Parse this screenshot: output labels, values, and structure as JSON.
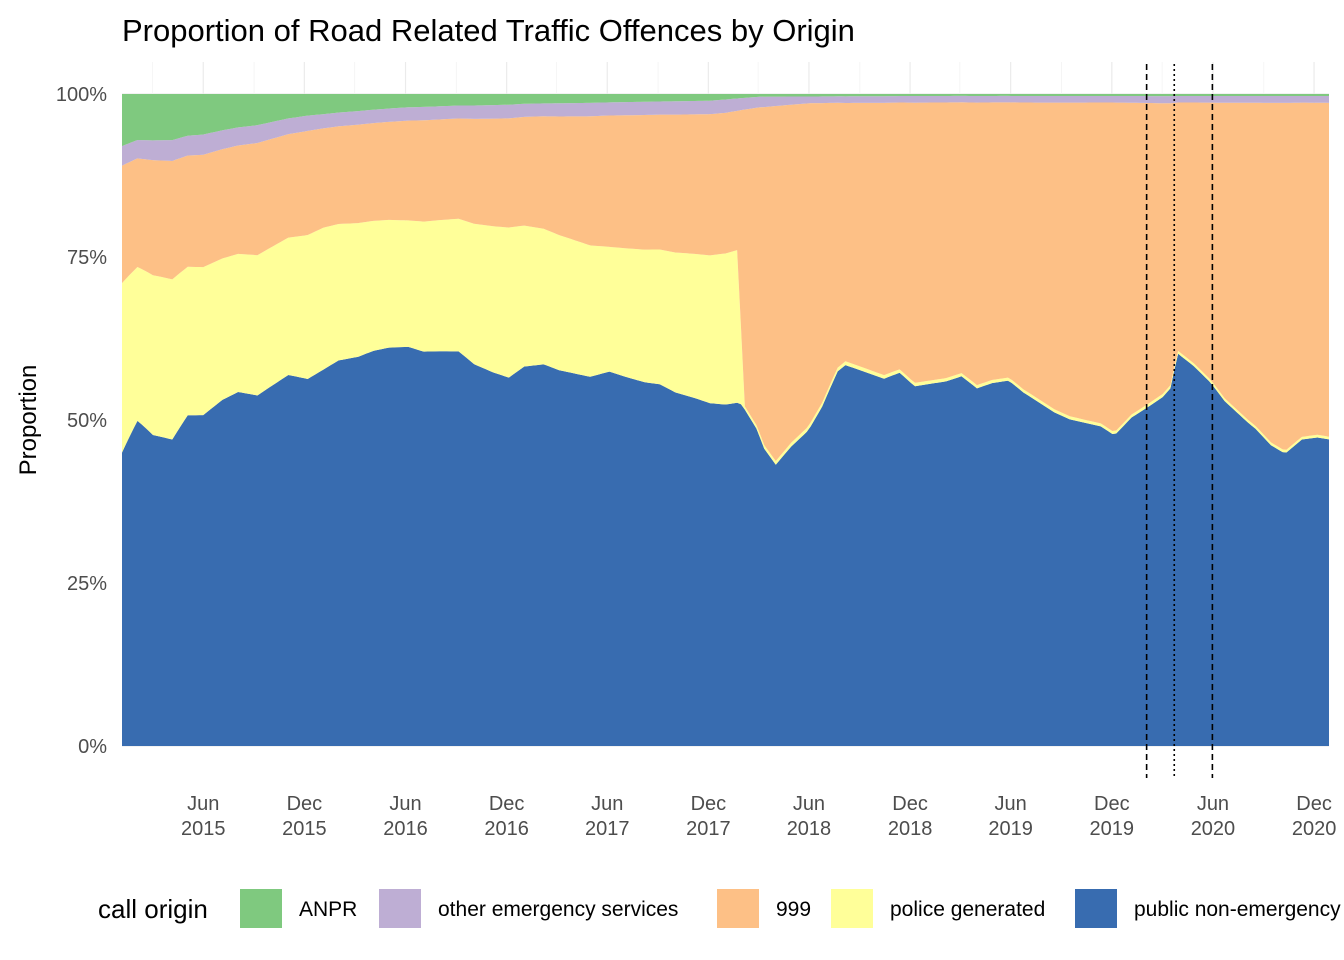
{
  "chart_data": {
    "type": "area",
    "stacked": true,
    "normalized": true,
    "title": "Proportion of Road Related Traffic Offences by Origin",
    "xlabel": "",
    "ylabel": "Proportion",
    "x_start": "2015-01-05",
    "x_end": "2020-12-28",
    "ylim": [
      0,
      1
    ],
    "y_ticks": [
      {
        "value": 0,
        "label": "0%"
      },
      {
        "value": 0.25,
        "label": "25%"
      },
      {
        "value": 0.5,
        "label": "50%"
      },
      {
        "value": 0.75,
        "label": "75%"
      },
      {
        "value": 1,
        "label": "100%"
      }
    ],
    "x_ticks": [
      {
        "date": "2015-06-01",
        "month": "Jun",
        "year": "2015"
      },
      {
        "date": "2015-12-01",
        "month": "Dec",
        "year": "2015"
      },
      {
        "date": "2016-06-01",
        "month": "Jun",
        "year": "2016"
      },
      {
        "date": "2016-12-01",
        "month": "Dec",
        "year": "2016"
      },
      {
        "date": "2017-06-01",
        "month": "Jun",
        "year": "2017"
      },
      {
        "date": "2017-12-01",
        "month": "Dec",
        "year": "2017"
      },
      {
        "date": "2018-06-01",
        "month": "Jun",
        "year": "2018"
      },
      {
        "date": "2018-12-01",
        "month": "Dec",
        "year": "2018"
      },
      {
        "date": "2019-06-01",
        "month": "Jun",
        "year": "2019"
      },
      {
        "date": "2019-12-01",
        "month": "Dec",
        "year": "2019"
      },
      {
        "date": "2020-06-01",
        "month": "Jun",
        "year": "2020"
      },
      {
        "date": "2020-12-01",
        "month": "Dec",
        "year": "2020"
      }
    ],
    "grid": true,
    "legend_position": "bottom",
    "legend_title": "call origin",
    "reference_lines": [
      {
        "date": "2020-02-02",
        "style": "dashed"
      },
      {
        "date": "2020-03-23",
        "style": "dotted"
      },
      {
        "date": "2020-05-31",
        "style": "dashed"
      }
    ],
    "series": [
      {
        "name": "public non-emergency",
        "color": "#386cb0",
        "anchors": [
          [
            "2015-01-05",
            0.45
          ],
          [
            "2015-02-02",
            0.53
          ],
          [
            "2015-03-02",
            0.47
          ],
          [
            "2015-04-06",
            0.44
          ],
          [
            "2015-05-04",
            0.5
          ],
          [
            "2015-06-01",
            0.49
          ],
          [
            "2015-07-06",
            0.52
          ],
          [
            "2015-08-03",
            0.53
          ],
          [
            "2015-09-07",
            0.5
          ],
          [
            "2015-10-05",
            0.52
          ],
          [
            "2015-11-02",
            0.54
          ],
          [
            "2015-12-07",
            0.51
          ],
          [
            "2016-01-04",
            0.53
          ],
          [
            "2016-02-01",
            0.56
          ],
          [
            "2016-03-07",
            0.57
          ],
          [
            "2016-04-04",
            0.59
          ],
          [
            "2016-05-02",
            0.6
          ],
          [
            "2016-06-06",
            0.6
          ],
          [
            "2016-07-04",
            0.59
          ],
          [
            "2016-08-01",
            0.6
          ],
          [
            "2016-09-05",
            0.61
          ],
          [
            "2016-10-03",
            0.57
          ],
          [
            "2016-11-07",
            0.55
          ],
          [
            "2016-12-05",
            0.54
          ],
          [
            "2017-01-02",
            0.58
          ],
          [
            "2017-02-06",
            0.59
          ],
          [
            "2017-03-06",
            0.57
          ],
          [
            "2017-04-03",
            0.56
          ],
          [
            "2017-05-01",
            0.55
          ],
          [
            "2017-06-05",
            0.57
          ],
          [
            "2017-07-03",
            0.56
          ],
          [
            "2017-08-07",
            0.55
          ],
          [
            "2017-09-04",
            0.55
          ],
          [
            "2017-10-02",
            0.53
          ],
          [
            "2017-11-06",
            0.52
          ],
          [
            "2017-12-04",
            0.51
          ],
          [
            "2018-01-01",
            0.51
          ],
          [
            "2018-01-29",
            0.52
          ],
          [
            "2018-02-26",
            0.48
          ],
          [
            "2018-03-12",
            0.44
          ],
          [
            "2018-04-02",
            0.42
          ],
          [
            "2018-04-30",
            0.45
          ],
          [
            "2018-05-28",
            0.47
          ],
          [
            "2018-06-25",
            0.51
          ],
          [
            "2018-07-23",
            0.58
          ],
          [
            "2018-08-20",
            0.57
          ],
          [
            "2018-09-17",
            0.56
          ],
          [
            "2018-10-15",
            0.55
          ],
          [
            "2018-11-12",
            0.58
          ],
          [
            "2018-12-10",
            0.54
          ],
          [
            "2019-01-07",
            0.55
          ],
          [
            "2019-02-04",
            0.56
          ],
          [
            "2019-03-04",
            0.58
          ],
          [
            "2019-04-01",
            0.54
          ],
          [
            "2019-04-29",
            0.56
          ],
          [
            "2019-05-27",
            0.57
          ],
          [
            "2019-06-24",
            0.54
          ],
          [
            "2019-07-22",
            0.52
          ],
          [
            "2019-08-19",
            0.5
          ],
          [
            "2019-09-16",
            0.49
          ],
          [
            "2019-10-14",
            0.49
          ],
          [
            "2019-11-11",
            0.49
          ],
          [
            "2019-12-09",
            0.47
          ],
          [
            "2020-01-06",
            0.49
          ],
          [
            "2020-02-03",
            0.49
          ],
          [
            "2020-03-02",
            0.49
          ],
          [
            "2020-03-16",
            0.5
          ],
          [
            "2020-03-30",
            0.6
          ],
          [
            "2020-04-27",
            0.58
          ],
          [
            "2020-05-25",
            0.55
          ],
          [
            "2020-06-22",
            0.51
          ],
          [
            "2020-07-20",
            0.49
          ],
          [
            "2020-08-17",
            0.47
          ],
          [
            "2020-09-14",
            0.44
          ],
          [
            "2020-10-12",
            0.43
          ],
          [
            "2020-11-09",
            0.46
          ],
          [
            "2020-12-07",
            0.46
          ],
          [
            "2020-12-28",
            0.45
          ]
        ]
      },
      {
        "name": "police generated",
        "color": "#ffff99",
        "anchors": [
          [
            "2015-01-05",
            0.26
          ],
          [
            "2015-04-06",
            0.23
          ],
          [
            "2015-09-07",
            0.2
          ],
          [
            "2016-01-04",
            0.2
          ],
          [
            "2016-06-06",
            0.19
          ],
          [
            "2016-12-05",
            0.22
          ],
          [
            "2017-06-05",
            0.19
          ],
          [
            "2017-12-04",
            0.22
          ],
          [
            "2018-01-22",
            0.23
          ],
          [
            "2018-02-05",
            0.005
          ],
          [
            "2018-06-04",
            0.006
          ],
          [
            "2019-01-07",
            0.005
          ],
          [
            "2020-12-28",
            0.004
          ]
        ]
      },
      {
        "name": "999",
        "color": "#fdc086",
        "anchors": [
          [
            "2015-01-05",
            0.18
          ],
          [
            "2015-04-06",
            0.17
          ],
          [
            "2015-09-07",
            0.16
          ],
          [
            "2016-01-04",
            0.14
          ],
          [
            "2016-06-06",
            0.15
          ],
          [
            "2016-12-05",
            0.16
          ],
          [
            "2017-06-05",
            0.2
          ],
          [
            "2017-12-04",
            0.21
          ],
          [
            "2018-01-22",
            0.21
          ],
          [
            "2018-02-05",
            0.45
          ],
          [
            "2018-04-02",
            0.53
          ],
          [
            "2018-06-04",
            0.48
          ],
          [
            "2018-08-06",
            0.39
          ],
          [
            "2018-12-03",
            0.42
          ],
          [
            "2019-06-03",
            0.43
          ],
          [
            "2019-12-02",
            0.5
          ],
          [
            "2020-03-30",
            0.38
          ],
          [
            "2020-06-01",
            0.42
          ],
          [
            "2020-08-03",
            0.47
          ],
          [
            "2020-10-05",
            0.51
          ],
          [
            "2020-12-28",
            0.49
          ]
        ]
      },
      {
        "name": "other emergency services",
        "color": "#beaed4",
        "anchors": [
          [
            "2015-01-05",
            0.03
          ],
          [
            "2015-06-01",
            0.03
          ],
          [
            "2016-01-04",
            0.02
          ],
          [
            "2017-01-02",
            0.02
          ],
          [
            "2018-01-01",
            0.02
          ],
          [
            "2018-06-04",
            0.01
          ],
          [
            "2020-12-28",
            0.01
          ]
        ]
      },
      {
        "name": "ANPR",
        "color": "#7fc97f",
        "anchors": [
          [
            "2015-01-05",
            0.08
          ],
          [
            "2015-03-02",
            0.07
          ],
          [
            "2015-06-01",
            0.06
          ],
          [
            "2015-12-07",
            0.03
          ],
          [
            "2016-06-06",
            0.02
          ],
          [
            "2017-01-02",
            0.015
          ],
          [
            "2017-12-04",
            0.01
          ],
          [
            "2018-03-05",
            0.004
          ],
          [
            "2019-01-07",
            0.003
          ],
          [
            "2020-12-28",
            0.003
          ]
        ]
      }
    ]
  }
}
